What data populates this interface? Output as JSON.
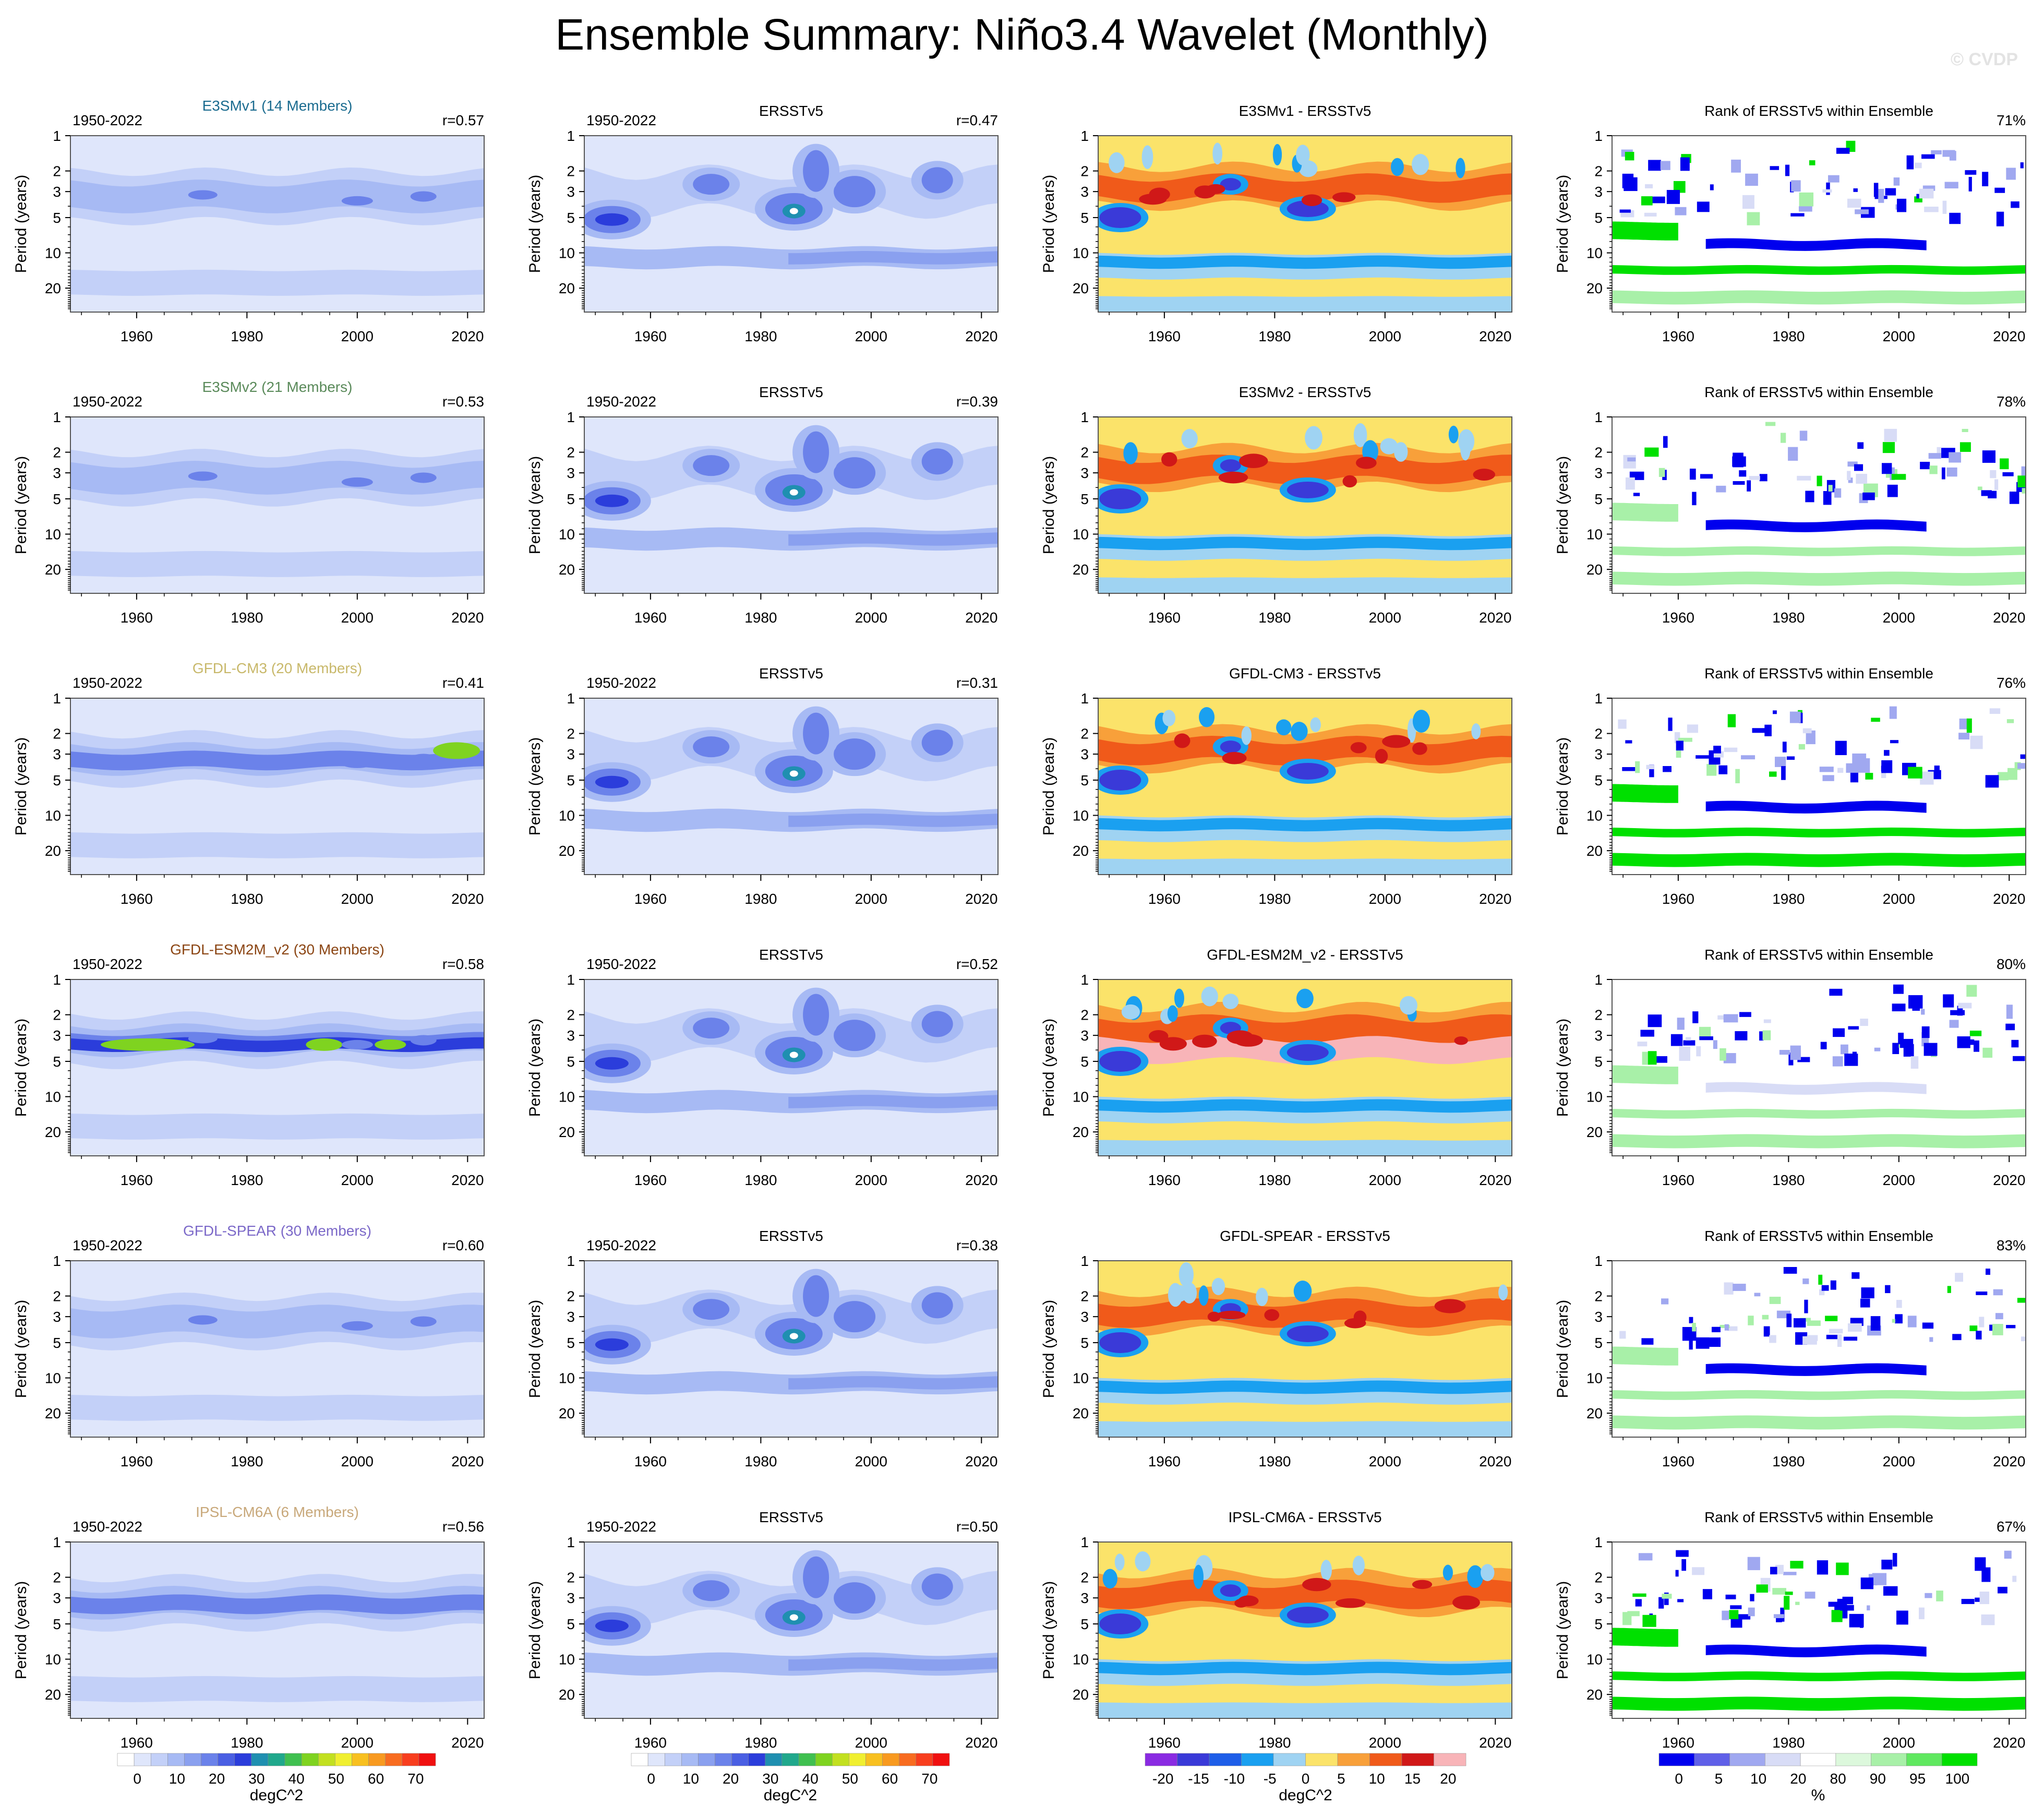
{
  "title": "Ensemble Summary: Niño3.4 Wavelet (Monthly)",
  "watermark": "© CVDP",
  "colors": {
    "frame": "#555555",
    "model_titles": [
      "#1a6b8f",
      "#5a8a5a",
      "#c8b86a",
      "#8b4513",
      "#7b68c8",
      "#c8a87a"
    ]
  },
  "common": {
    "years_label": "1950-2022",
    "ylabel": "Period (years)",
    "obs_label": "ERSSTv5",
    "rank_title": "Rank of ERSSTv5 within Ensemble",
    "x_ticks": [
      "1960",
      "1980",
      "2000",
      "2020"
    ],
    "y_ticks": [
      "1",
      "2",
      "3",
      "5",
      "10",
      "20"
    ]
  },
  "chart_data": {
    "type": "heatmap",
    "rows": [
      {
        "model": "E3SMv1 (14 Members)",
        "r_model": "r=0.57",
        "r_obs": "r=0.47",
        "diff_title": "E3SMv1 - ERSSTv5",
        "rank_pct": "71%"
      },
      {
        "model": "E3SMv2 (21 Members)",
        "r_model": "r=0.53",
        "r_obs": "r=0.39",
        "diff_title": "E3SMv2 - ERSSTv5",
        "rank_pct": "78%"
      },
      {
        "model": "GFDL-CM3 (20 Members)",
        "r_model": "r=0.41",
        "r_obs": "r=0.31",
        "diff_title": "GFDL-CM3 - ERSSTv5",
        "rank_pct": "76%"
      },
      {
        "model": "GFDL-ESM2M_v2 (30 Members)",
        "r_model": "r=0.58",
        "r_obs": "r=0.52",
        "diff_title": "GFDL-ESM2M_v2 - ERSSTv5",
        "rank_pct": "80%"
      },
      {
        "model": "GFDL-SPEAR (30 Members)",
        "r_model": "r=0.60",
        "r_obs": "r=0.38",
        "diff_title": "GFDL-SPEAR - ERSSTv5",
        "rank_pct": "83%"
      },
      {
        "model": "IPSL-CM6A (6 Members)",
        "r_model": "r=0.56",
        "r_obs": "r=0.50",
        "diff_title": "IPSL-CM6A - ERSSTv5",
        "rank_pct": "67%"
      }
    ],
    "x_range": [
      1948,
      2023
    ],
    "y_range_years": [
      1,
      32
    ],
    "colorbars": {
      "power": {
        "unit": "degC^2",
        "labels": [
          "0",
          "10",
          "20",
          "30",
          "40",
          "50",
          "60",
          "70"
        ],
        "colors": [
          "#ffffff",
          "#dfe6fb",
          "#c3d0f8",
          "#a7baf4",
          "#8aa0ef",
          "#6b82ea",
          "#4a5fe3",
          "#2b3ddb",
          "#1f8fb0",
          "#20a88c",
          "#40c050",
          "#7fd320",
          "#c2e020",
          "#f0ef30",
          "#f8c020",
          "#f89a20",
          "#f86c20",
          "#f83e1e",
          "#f01010"
        ]
      },
      "diff": {
        "unit": "degC^2",
        "labels": [
          "-20",
          "-15",
          "-10",
          "-5",
          "0",
          "5",
          "10",
          "15",
          "20"
        ],
        "colors": [
          "#8a2be2",
          "#3a3ad8",
          "#1e5ee8",
          "#1aa0f0",
          "#9fd3f2",
          "#fbe36a",
          "#f8a03a",
          "#f05a1a",
          "#d01818",
          "#f8b4b8"
        ]
      },
      "rank": {
        "unit": "%",
        "labels": [
          "0",
          "5",
          "10",
          "20",
          "80",
          "90",
          "95",
          "100"
        ],
        "colors": [
          "#0000ee",
          "#6060e8",
          "#a0a8f0",
          "#d8dcf6",
          "#ffffff",
          "#dcf8dc",
          "#a8f0a8",
          "#60e860",
          "#00e000"
        ]
      }
    }
  }
}
